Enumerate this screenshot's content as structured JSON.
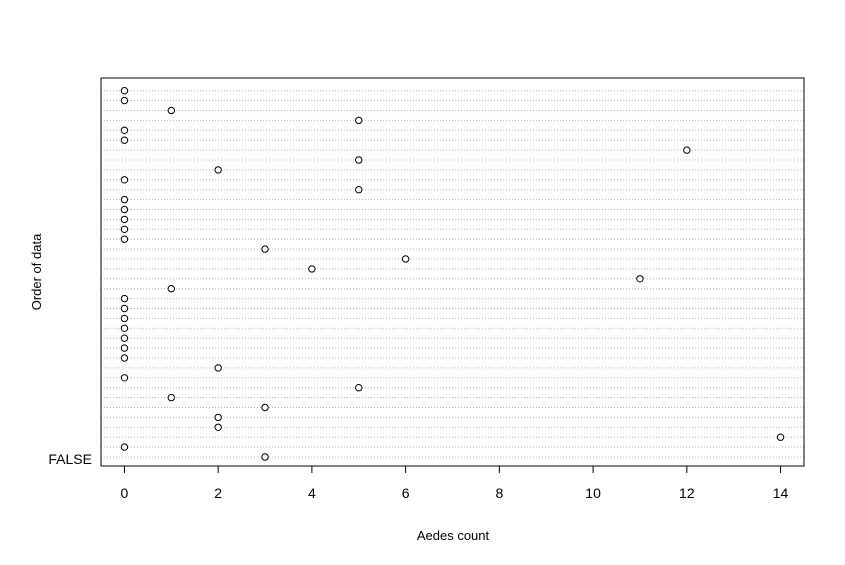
{
  "chart_data": {
    "type": "scatter",
    "xlabel": "Aedes count",
    "ylabel": "Order of data",
    "xlim": [
      -0.5,
      14.5
    ],
    "x_ticks": [
      0,
      2,
      4,
      6,
      8,
      10,
      12,
      14
    ],
    "grid": "horizontal-dotted",
    "y_category_labels": [
      "FALSE"
    ],
    "y_order": "bottom-to-top",
    "values": [
      3,
      0,
      14,
      2,
      2,
      3,
      1,
      5,
      0,
      2,
      0,
      0,
      0,
      0,
      0,
      0,
      0,
      1,
      11,
      4,
      6,
      3,
      0,
      0,
      0,
      0,
      0,
      5,
      0,
      2,
      5,
      12,
      0,
      0,
      5,
      1,
      0,
      0
    ]
  }
}
